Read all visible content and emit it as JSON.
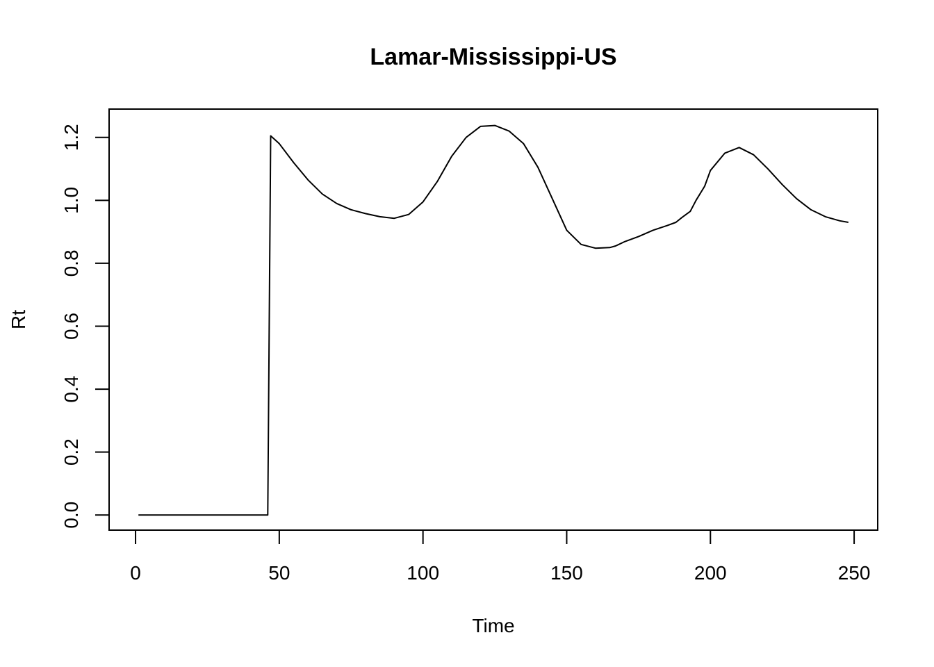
{
  "chart_data": {
    "type": "line",
    "title": "Lamar-Mississippi-US",
    "xlabel": "Time",
    "ylabel": "Rt",
    "xlim": [
      -9.2,
      258.2
    ],
    "ylim": [
      -0.048,
      1.29
    ],
    "xticks": [
      0,
      50,
      100,
      150,
      200,
      250
    ],
    "yticks": [
      0.0,
      0.2,
      0.4,
      0.6,
      0.8,
      1.0,
      1.2
    ],
    "xtick_labels": [
      "0",
      "50",
      "100",
      "150",
      "200",
      "250"
    ],
    "ytick_labels": [
      "0.0",
      "0.2",
      "0.4",
      "0.6",
      "0.8",
      "1.0",
      "1.2"
    ],
    "grid": false,
    "line_color": "#000000",
    "series": [
      {
        "x": [
          1,
          10,
          20,
          30,
          40,
          45,
          46,
          47,
          50,
          55,
          60,
          65,
          70,
          75,
          80,
          85,
          90,
          95,
          100,
          105,
          110,
          115,
          120,
          125,
          130,
          135,
          140,
          145,
          150,
          155,
          160,
          165,
          167,
          170,
          175,
          180,
          185,
          188,
          190,
          193,
          195,
          198,
          200,
          205,
          210,
          215,
          220,
          225,
          230,
          235,
          240,
          245,
          248
        ],
        "y": [
          0.0,
          0.0,
          0.0,
          0.0,
          0.0,
          0.0,
          0.0,
          1.205,
          1.18,
          1.12,
          1.065,
          1.02,
          0.99,
          0.97,
          0.958,
          0.948,
          0.943,
          0.955,
          0.995,
          1.06,
          1.14,
          1.2,
          1.235,
          1.238,
          1.22,
          1.18,
          1.105,
          1.005,
          0.905,
          0.86,
          0.848,
          0.85,
          0.855,
          0.868,
          0.885,
          0.905,
          0.92,
          0.93,
          0.945,
          0.965,
          1.0,
          1.045,
          1.095,
          1.15,
          1.168,
          1.145,
          1.1,
          1.05,
          1.005,
          0.97,
          0.948,
          0.935,
          0.93
        ]
      }
    ]
  }
}
